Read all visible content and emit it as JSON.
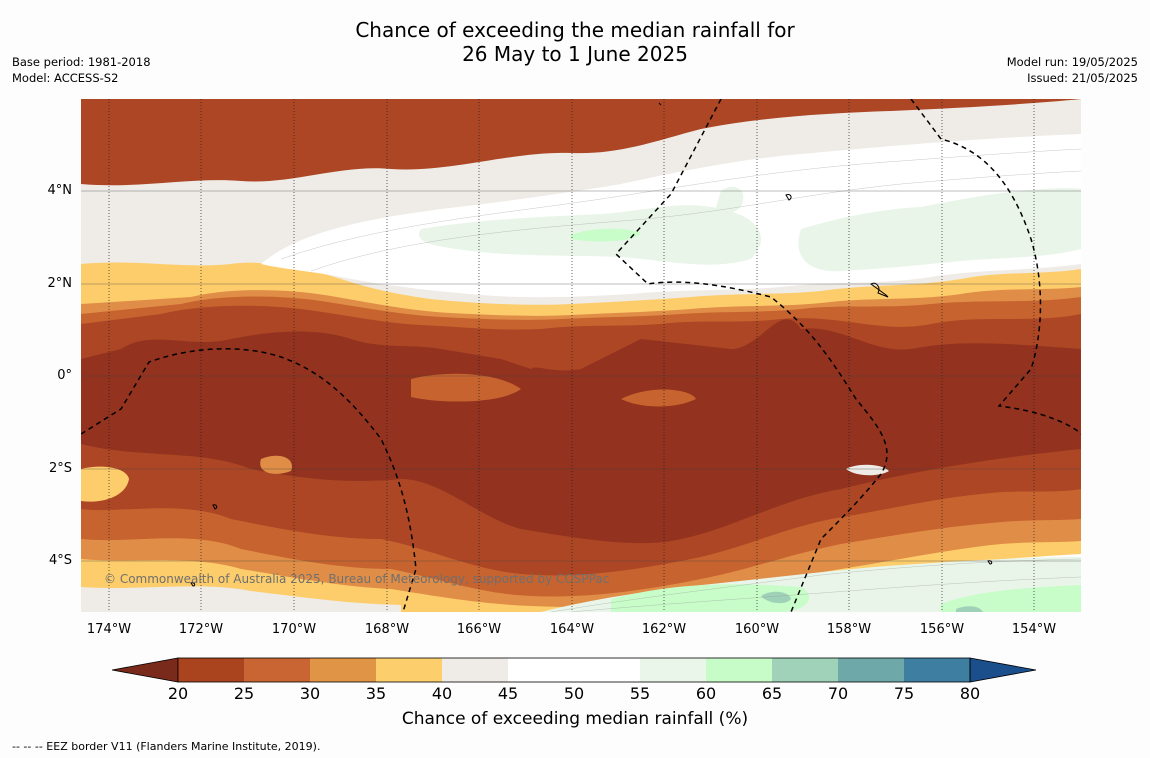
{
  "title_line1": "Chance of exceeding the median rainfall for",
  "title_line2": "26 May to 1 June 2025",
  "info_left": [
    "Base period: 1981-2018",
    "Model: ACCESS-S2"
  ],
  "info_right": [
    "Model run: 19/05/2025",
    "Issued: 21/05/2025"
  ],
  "x_ticks": [
    "174°W",
    "172°W",
    "170°W",
    "168°W",
    "166°W",
    "164°W",
    "162°W",
    "160°W",
    "158°W",
    "156°W",
    "154°W"
  ],
  "y_ticks": [
    "4°N",
    "2°N",
    "0°",
    "2°S",
    "4°S"
  ],
  "copyright": "© Commonwealth of Australia 2025, Bureau of Meteorology, supported by COSPPac",
  "colorbar": {
    "tick_labels": [
      "20",
      "25",
      "30",
      "35",
      "40",
      "45",
      "50",
      "55",
      "60",
      "65",
      "70",
      "75",
      "80"
    ],
    "colors": [
      "#7a2a1a",
      "#a9441f",
      "#c96433",
      "#e09445",
      "#fdcf6c",
      "#efebe7",
      "#ffffff",
      "#ffffff",
      "#e9f6e9",
      "#c7fcc9",
      "#9fd2b8",
      "#6fa8a8",
      "#3e7ea0",
      "#1b4f8c"
    ],
    "label": "Chance of exceeding median rainfall (%)"
  },
  "footer": "--  --  -- EEZ border V11 (Flanders Marine Institute, 2019).",
  "map_palette": {
    "lt25": "#93321e",
    "p25_30": "#ac4624",
    "p30_35": "#c7632f",
    "p35_40": "#e08e47",
    "p40_45": "#fdcd6b",
    "p45_50": "#efebe6",
    "p50_55": "#ffffff",
    "p55_60": "#e9f5e9",
    "p60_65": "#c8fcc9",
    "p65_70": "#9fd1b9"
  }
}
